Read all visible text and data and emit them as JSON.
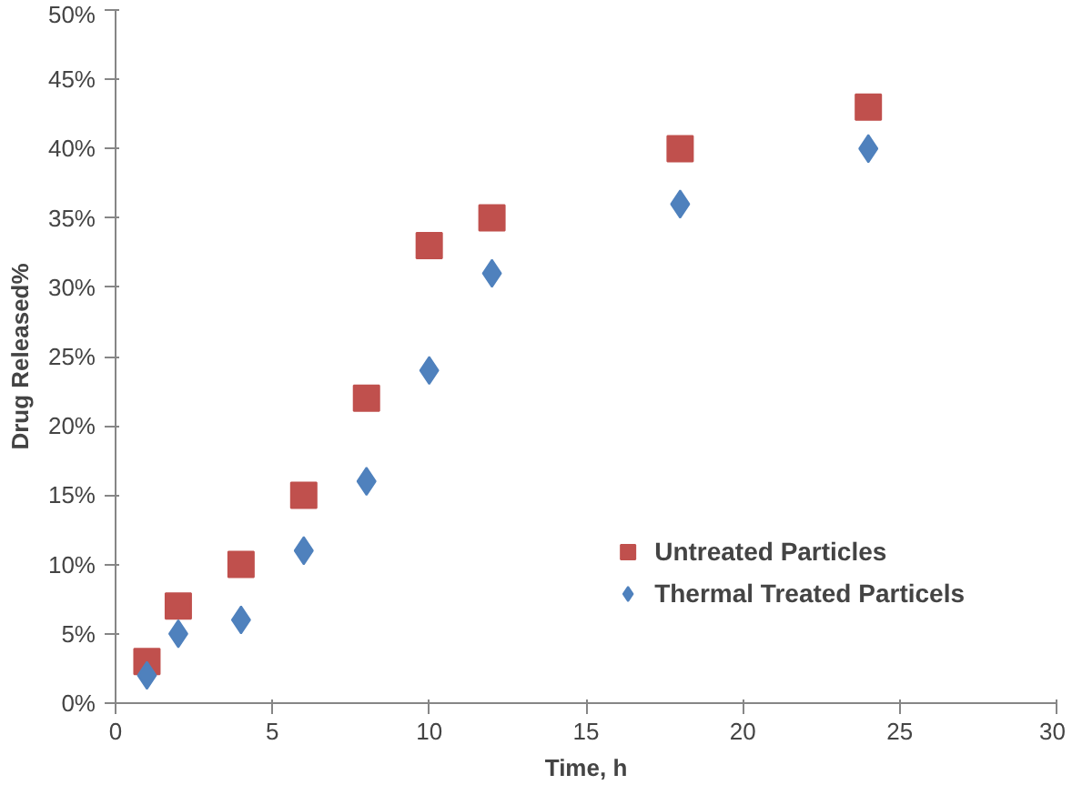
{
  "chart_data": {
    "type": "scatter",
    "xlabel": "Time, h",
    "ylabel": "Drug Released%",
    "x": [
      1,
      2,
      4,
      6,
      8,
      10,
      12,
      18,
      24
    ],
    "series": [
      {
        "name": "Untreated Particles",
        "color": "#c0504d",
        "marker": "square",
        "values": [
          3,
          7,
          10,
          15,
          22,
          33,
          35,
          40,
          43
        ]
      },
      {
        "name": "Thermal Treated Particels",
        "color": "#4f81bd",
        "marker": "diamond",
        "values": [
          2,
          5,
          6,
          11,
          16,
          24,
          31,
          36,
          40
        ]
      }
    ],
    "xlim": [
      0,
      30
    ],
    "xticks": [
      0,
      5,
      10,
      15,
      20,
      25,
      30
    ],
    "ylim": [
      0,
      50
    ],
    "yticks": [
      {
        "value": 0,
        "label": "0%"
      },
      {
        "value": 5,
        "label": "5%"
      },
      {
        "value": 10,
        "label": "10%"
      },
      {
        "value": 15,
        "label": "15%"
      },
      {
        "value": 20,
        "label": "20%"
      },
      {
        "value": 25,
        "label": "25%"
      },
      {
        "value": 30,
        "label": "30%"
      },
      {
        "value": 35,
        "label": "35%"
      },
      {
        "value": 40,
        "label": "40%"
      },
      {
        "value": 45,
        "label": "45%"
      },
      {
        "value": 50,
        "label": "50%"
      }
    ],
    "grid": false,
    "legend": "bottom right"
  }
}
